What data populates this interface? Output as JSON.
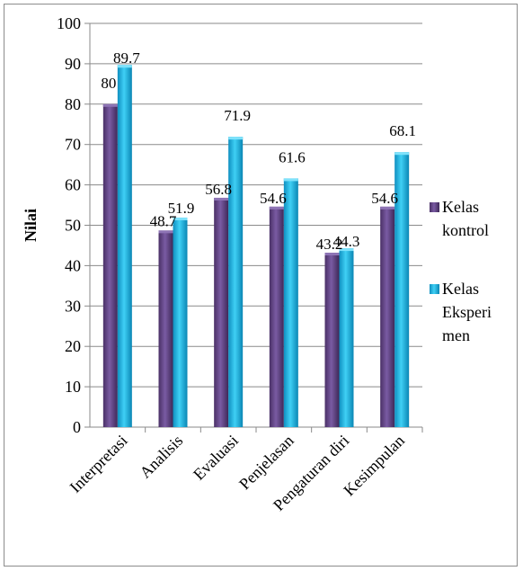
{
  "chart_data": {
    "type": "bar",
    "title": "",
    "xlabel": "",
    "ylabel": "Nilai",
    "ylim": [
      0,
      100
    ],
    "yticks": [
      0,
      10,
      20,
      30,
      40,
      50,
      60,
      70,
      80,
      90,
      100
    ],
    "grid": true,
    "legend_position": "right",
    "categories": [
      "Interpretasi",
      "Analisis",
      "Evaluasi",
      "Penjelasan",
      "Pengaturan diri",
      "Kesimpulan"
    ],
    "series": [
      {
        "name": "Kelas kontrol",
        "legend_lines": [
          "Kelas",
          "kontrol"
        ],
        "color": "#6b4e8f",
        "values": [
          80,
          48.7,
          56.8,
          54.6,
          43.2,
          54.6
        ],
        "labels": [
          "80",
          "48.7",
          "56.8",
          "54.6",
          "43.2",
          "54.6"
        ]
      },
      {
        "name": "Kelas Eksperimen",
        "legend_lines": [
          "Kelas",
          "Eksperi",
          "men"
        ],
        "color": "#1fb4e4",
        "values": [
          89.7,
          51.9,
          71.9,
          61.6,
          44.3,
          68.1
        ],
        "labels": [
          "89.7",
          "51.9",
          "71.9",
          "61.6",
          "44.3",
          "68.1"
        ]
      }
    ]
  }
}
